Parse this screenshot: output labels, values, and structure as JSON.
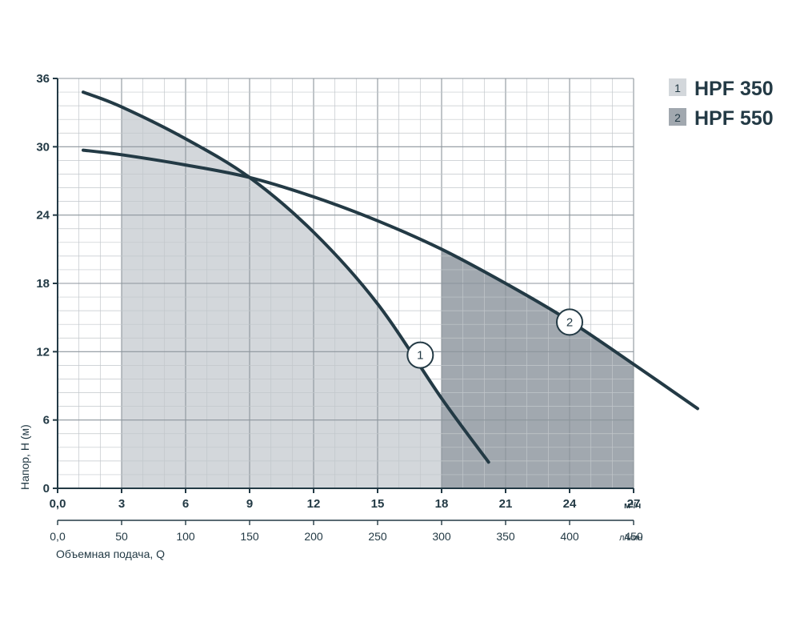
{
  "colors": {
    "curve": "#233a45",
    "region_light": "#d3d7db",
    "region_dark": "#a1a8af",
    "grid_major": "#8c959c",
    "grid_minor": "#c2c7cb",
    "text": "#233a45"
  },
  "chart_data": {
    "type": "line",
    "title": "",
    "ylabel": "Напор, Н (м)",
    "xlabel_secondary": "Объемная подача, Q",
    "x_unit": "м³/ч",
    "x2_unit": "л/мин",
    "xlim": [
      0,
      27
    ],
    "ylim": [
      0,
      36
    ],
    "grid": true,
    "legend_position": "top-right",
    "y_ticks": [
      "0",
      "6",
      "12",
      "18",
      "24",
      "30",
      "36"
    ],
    "x_ticks": [
      "0,0",
      "3",
      "6",
      "9",
      "12",
      "15",
      "18",
      "21",
      "24",
      "27"
    ],
    "x2_ticks": [
      "0,0",
      "50",
      "100",
      "150",
      "200",
      "250",
      "300",
      "350",
      "400",
      "450"
    ],
    "series": [
      {
        "name": "HPF 350",
        "marker": "1",
        "marker_at": [
          17,
          11.7
        ],
        "working_range": [
          3,
          18
        ],
        "x": [
          1.2,
          3,
          6,
          9,
          12,
          15,
          18,
          20.2
        ],
        "y": [
          34.8,
          33.5,
          30.7,
          27.3,
          22.5,
          16.2,
          7.9,
          2.3
        ]
      },
      {
        "name": "HPF 550",
        "marker": "2",
        "marker_at": [
          24,
          14.6
        ],
        "working_range": [
          18,
          27
        ],
        "x": [
          1.2,
          3,
          6,
          9,
          12,
          15,
          18,
          21,
          24,
          27,
          30
        ],
        "y": [
          29.7,
          29.3,
          28.4,
          27.3,
          25.6,
          23.5,
          21.0,
          18.0,
          14.7,
          10.9,
          7.0
        ]
      }
    ]
  }
}
